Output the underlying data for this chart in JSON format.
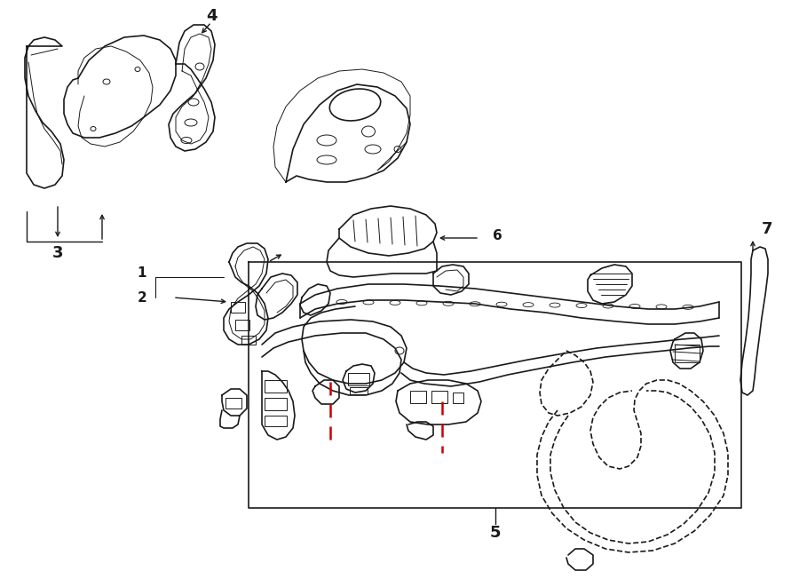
{
  "bg_color": "#ffffff",
  "lc": "#1a1a1a",
  "rc": "#cc0000",
  "lw_main": 1.2,
  "lw_thin": 0.7,
  "lw_red": 1.5,
  "fig_w": 9.0,
  "fig_h": 6.61,
  "dpi": 100
}
